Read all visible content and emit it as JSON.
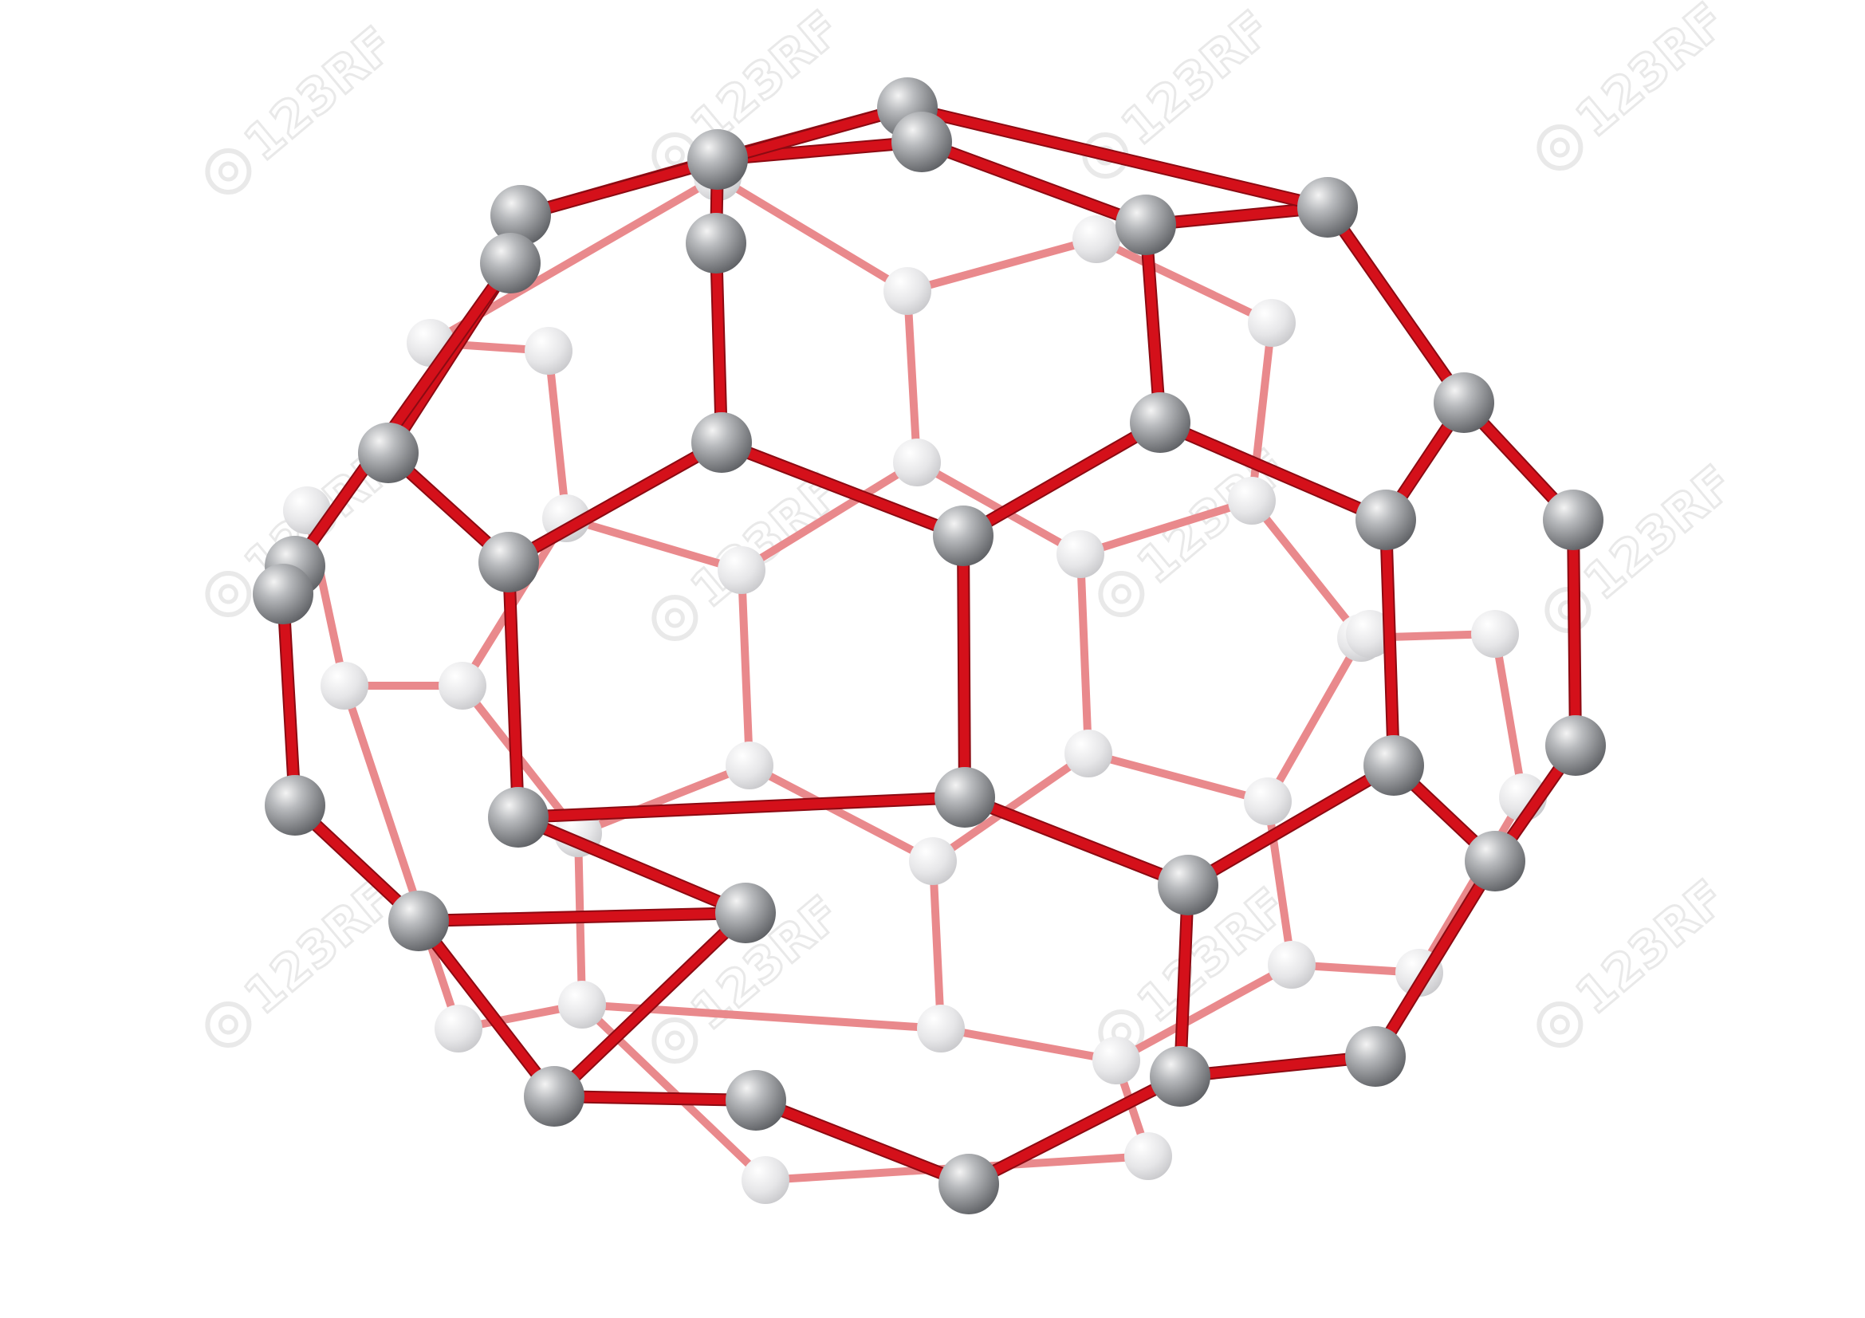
{
  "image": {
    "subject": "fullerene molecule",
    "palette": {
      "background": "#ffffff",
      "bond_front": "#d4101a",
      "bond_front_dark": "#8c0a12",
      "bond_back": "#e9898c",
      "atom_front": "#9a9ca0",
      "atom_front_highlight": "#f2f2f2",
      "atom_back": "#e2e2e4"
    }
  },
  "watermark": {
    "label": "123RF",
    "icon": "camera-lens-icon",
    "color": "#d8d8d8"
  }
}
